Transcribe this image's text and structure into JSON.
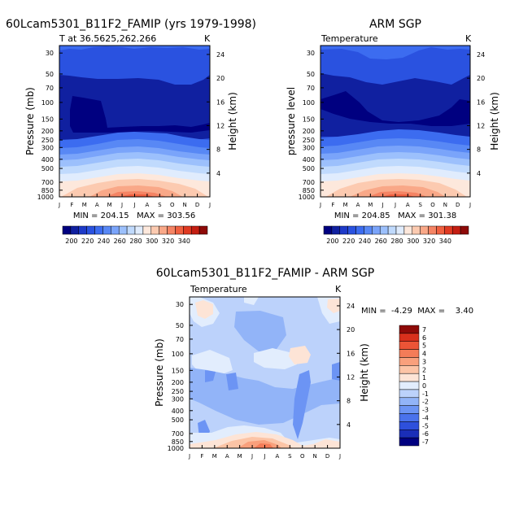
{
  "chart_data": [
    {
      "type": "heatmap",
      "title": "60Lcam5301_B11F2_FAMIP (yrs 1979-1998)",
      "subtitle": "T at 36.5625,262.266",
      "units": "K",
      "xlabel": "",
      "ylabel": "Pressure (mb)",
      "y2label": "Height (km)",
      "x_ticks": [
        "J",
        "F",
        "M",
        "A",
        "M",
        "J",
        "J",
        "A",
        "S",
        "O",
        "N",
        "D",
        "J"
      ],
      "y_ticks": [
        30,
        50,
        70,
        100,
        150,
        200,
        250,
        300,
        400,
        500,
        700,
        850,
        1000
      ],
      "y2_ticks": [
        24,
        20,
        16,
        12,
        8,
        4
      ],
      "ylim": [
        1000,
        25
      ],
      "stats_text": "MIN = 204.15   MAX = 303.56",
      "min": 204.15,
      "max": 303.56,
      "colorbar_levels": [
        200,
        220,
        240,
        260,
        280,
        300,
        320,
        340
      ]
    },
    {
      "type": "heatmap",
      "title": "ARM SGP",
      "subtitle": "Temperature",
      "units": "K",
      "xlabel": "",
      "ylabel": "pressure level",
      "y2label": "Height (km)",
      "x_ticks": [
        "J",
        "F",
        "M",
        "A",
        "M",
        "J",
        "J",
        "A",
        "S",
        "O",
        "N",
        "D",
        "J"
      ],
      "y_ticks": [
        30,
        50,
        70,
        100,
        150,
        200,
        250,
        300,
        400,
        500,
        700,
        850,
        1000
      ],
      "y2_ticks": [
        24,
        20,
        16,
        12,
        8,
        4
      ],
      "ylim": [
        1000,
        25
      ],
      "stats_text": "MIN = 204.85   MAX = 301.38",
      "min": 204.85,
      "max": 301.38,
      "colorbar_levels": [
        200,
        220,
        240,
        260,
        280,
        300,
        320,
        340
      ]
    },
    {
      "type": "heatmap",
      "title": "60Lcam5301_B11F2_FAMIP - ARM SGP",
      "subtitle": "Temperature",
      "units": "K",
      "xlabel": "",
      "ylabel": "Pressure (mb)",
      "y2label": "Height (km)",
      "x_ticks": [
        "J",
        "F",
        "M",
        "A",
        "M",
        "J",
        "J",
        "A",
        "S",
        "O",
        "N",
        "D",
        "J"
      ],
      "y_ticks": [
        30,
        50,
        70,
        100,
        150,
        200,
        250,
        300,
        400,
        500,
        700,
        850,
        1000
      ],
      "y2_ticks": [
        24,
        20,
        16,
        12,
        8,
        4
      ],
      "ylim": [
        1000,
        25
      ],
      "stats_text": "MIN =  -4.29  MAX =    3.40",
      "min": -4.29,
      "max": 3.4,
      "colorbar_levels": [
        7,
        6,
        5,
        4,
        3,
        2,
        1,
        0,
        -1,
        -2,
        -3,
        -4,
        -5,
        -6,
        -7
      ]
    }
  ],
  "colors": {
    "abs_palette": [
      "#000080",
      "#1020a0",
      "#1e3ac8",
      "#2a52e0",
      "#3c6cf0",
      "#5888f5",
      "#7aa4fa",
      "#9cc0fc",
      "#c0dafd",
      "#e0ecfd",
      "#fde8dc",
      "#fccab0",
      "#f9a888",
      "#f58464",
      "#f06040",
      "#e03a22",
      "#c41e12",
      "#8e0a08"
    ],
    "diff_palette": [
      "#000080",
      "#1a2eb8",
      "#2e50dc",
      "#4a72ec",
      "#6c94f4",
      "#92b4f8",
      "#bcd2fb",
      "#e2edfd",
      "#fde4d6",
      "#fcc4a6",
      "#f9a07c",
      "#f47c58",
      "#ec5436",
      "#d8301c",
      "#8e0a08"
    ],
    "background": "#ffffff"
  }
}
